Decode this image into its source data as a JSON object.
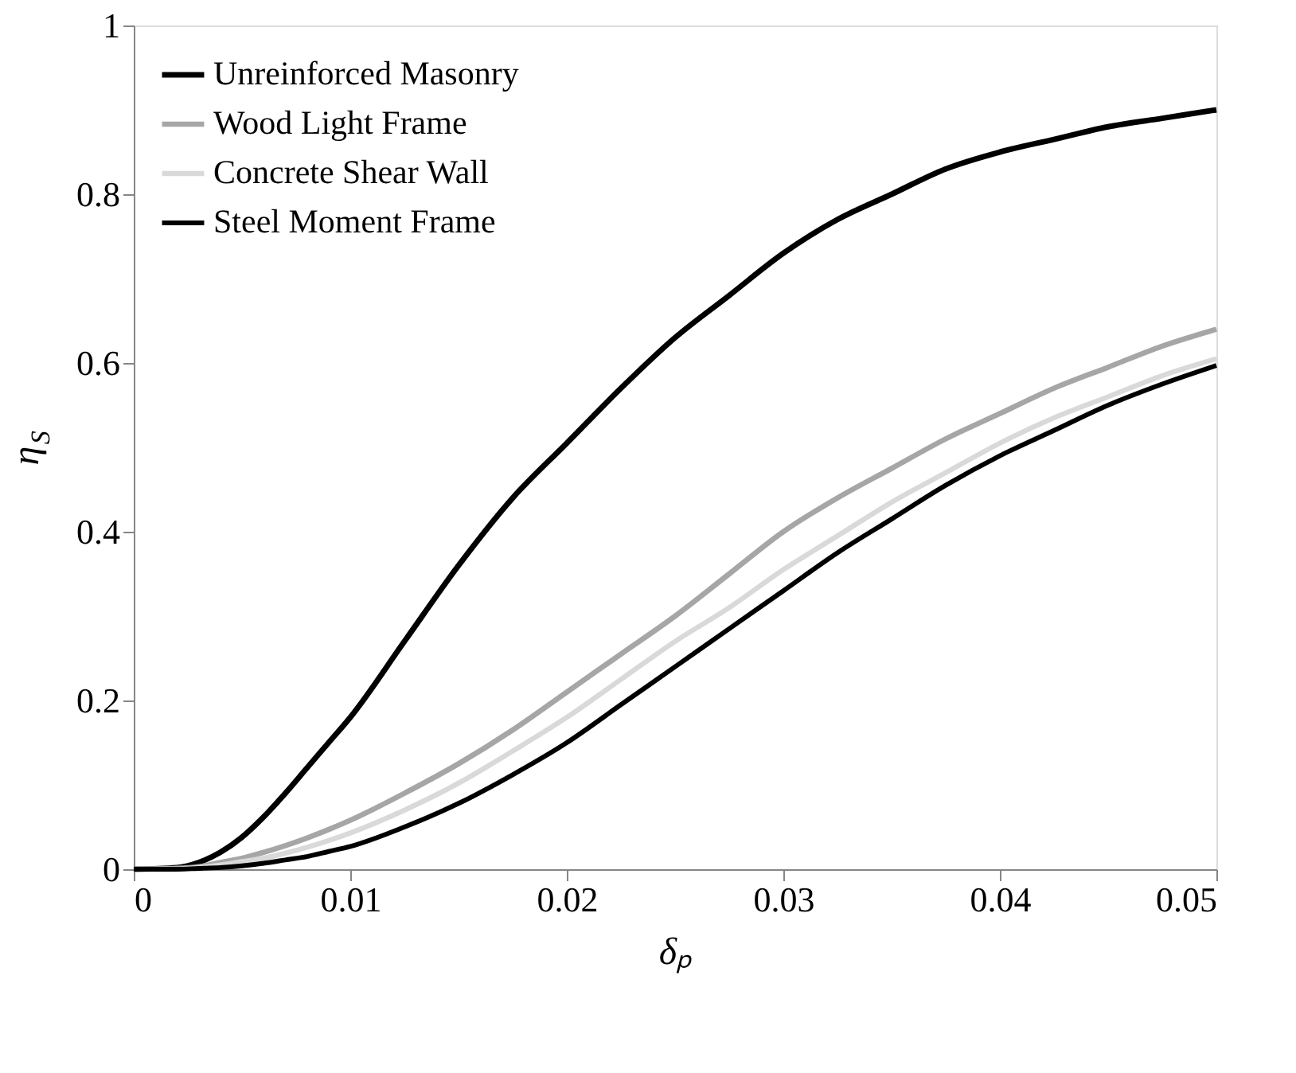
{
  "chart_data": {
    "type": "line",
    "xlabel": "δₚ",
    "ylabel": "η$_{S}$",
    "x": [
      0,
      0.002,
      0.003,
      0.004,
      0.005,
      0.006,
      0.007,
      0.008,
      0.009,
      0.01,
      0.0125,
      0.015,
      0.0175,
      0.02,
      0.0225,
      0.025,
      0.0275,
      0.03,
      0.0325,
      0.035,
      0.0375,
      0.04,
      0.0425,
      0.045,
      0.0475,
      0.05
    ],
    "series": [
      {
        "name": "Unreinforced Masonry",
        "color": "#000000",
        "values": [
          0,
          0.002,
          0.008,
          0.02,
          0.038,
          0.062,
          0.09,
          0.12,
          0.15,
          0.18,
          0.27,
          0.36,
          0.44,
          0.505,
          0.57,
          0.63,
          0.68,
          0.73,
          0.77,
          0.8,
          0.83,
          0.85,
          0.865,
          0.88,
          0.89,
          0.9
        ]
      },
      {
        "name": "Wood Light Frame",
        "color": "#a6a6a6",
        "values": [
          0,
          0.001,
          0.003,
          0.008,
          0.013,
          0.02,
          0.028,
          0.037,
          0.047,
          0.058,
          0.09,
          0.125,
          0.165,
          0.21,
          0.255,
          0.3,
          0.35,
          0.4,
          0.44,
          0.475,
          0.51,
          0.54,
          0.57,
          0.595,
          0.62,
          0.64
        ]
      },
      {
        "name": "Concrete Shear Wall",
        "color": "#d9d9d9",
        "values": [
          0,
          0,
          0.002,
          0.005,
          0.009,
          0.013,
          0.019,
          0.026,
          0.034,
          0.043,
          0.07,
          0.102,
          0.14,
          0.18,
          0.225,
          0.27,
          0.31,
          0.355,
          0.395,
          0.435,
          0.47,
          0.505,
          0.535,
          0.56,
          0.585,
          0.605
        ]
      },
      {
        "name": "Steel Moment Frame",
        "color": "#000000",
        "values": [
          0,
          0,
          0.001,
          0.002,
          0.004,
          0.007,
          0.011,
          0.015,
          0.021,
          0.027,
          0.05,
          0.078,
          0.112,
          0.15,
          0.195,
          0.24,
          0.285,
          0.33,
          0.375,
          0.415,
          0.455,
          0.49,
          0.52,
          0.55,
          0.575,
          0.597
        ]
      }
    ],
    "xlim": [
      0,
      0.05
    ],
    "xticks": [
      0,
      0.01,
      0.02,
      0.03,
      0.04,
      0.05
    ],
    "ylim": [
      0,
      1
    ],
    "yticks": [
      0,
      0.2,
      0.4,
      0.6,
      0.8,
      1
    ],
    "grid": false,
    "legend": "top left",
    "marker": "none",
    "line_style": "solid"
  }
}
